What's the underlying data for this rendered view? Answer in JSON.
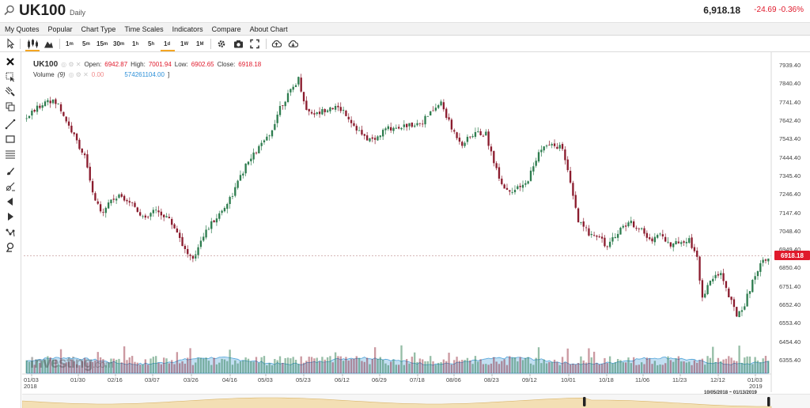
{
  "header": {
    "symbol": "UK100",
    "interval": "Daily",
    "last_price": "6,918.18",
    "change": "-24.69 -0.36%"
  },
  "menu": {
    "items": [
      "My Quotes",
      "Popular",
      "Chart Type",
      "Time Scales",
      "Indicators",
      "Compare",
      "About Chart"
    ]
  },
  "toolbar": {
    "timescales": [
      "1m",
      "5m",
      "15m",
      "30m",
      "1h",
      "5h",
      "1d",
      "1W",
      "1M"
    ],
    "active_timescale": "1d",
    "icons": [
      "cursor-icon",
      "candles-icon",
      "mountain-icon",
      "gear-icon",
      "camera-icon",
      "fullscreen-icon",
      "cloud-upload-icon",
      "cloud-download-icon"
    ]
  },
  "left_tools": [
    "close-icon",
    "cursor-select-icon",
    "magnet-icon",
    "copy-icon",
    "trend-line-icon",
    "rectangle-icon",
    "horizontal-lines-icon",
    "brush-icon",
    "fib-icon",
    "arrow-icon",
    "shape-icon",
    "pattern-icon",
    "magnifier-icon"
  ],
  "legend": {
    "symbol": "UK100",
    "open_label": "Open:",
    "open": "6942.87",
    "high_label": "High:",
    "high": "7001.94",
    "low_label": "Low:",
    "low": "6902.65",
    "close_label": "Close:",
    "close": "6918.18",
    "volume_label": "Volume",
    "volume_period": "(9)",
    "volume_zero": "0.00",
    "volume_value": "574261104.00"
  },
  "brand": {
    "name": "Investing",
    "suffix": ".com"
  },
  "navigator": {
    "range": "10/05/2018 ~ 01/13/2019"
  },
  "price_badge": "6918.18",
  "colors": {
    "up": "#2e7d4f",
    "down": "#8b1c2e",
    "accent": "#f5a623",
    "negative": "#e0192b",
    "volume_area": "#4fa3d9"
  },
  "chart_data": {
    "type": "candlestick",
    "y_ticks": [
      "7939.40",
      "7840.40",
      "7741.40",
      "7642.40",
      "7543.40",
      "7444.40",
      "7345.40",
      "7246.40",
      "7147.40",
      "7048.40",
      "6949.40",
      "6850.40",
      "6751.40",
      "6652.40",
      "6553.40",
      "6454.40",
      "6355.40"
    ],
    "x_ticks": [
      "01/03",
      "01/30",
      "02/16",
      "03/07",
      "03/26",
      "04/16",
      "05/03",
      "05/23",
      "06/12",
      "06/29",
      "07/18",
      "08/06",
      "08/23",
      "09/12",
      "10/01",
      "10/18",
      "11/06",
      "11/23",
      "12/12",
      "01/03"
    ],
    "x_years": [
      "2018",
      "2019"
    ],
    "ylim": [
      6355.4,
      7939.4
    ],
    "current_price": 6918.18,
    "anchors": [
      [
        0,
        7660
      ],
      [
        8,
        7760
      ],
      [
        12,
        7730
      ],
      [
        18,
        7560
      ],
      [
        22,
        7450
      ],
      [
        25,
        7250
      ],
      [
        28,
        7150
      ],
      [
        32,
        7220
      ],
      [
        36,
        7240
      ],
      [
        40,
        7200
      ],
      [
        45,
        7110
      ],
      [
        48,
        7160
      ],
      [
        53,
        7130
      ],
      [
        57,
        7050
      ],
      [
        60,
        6950
      ],
      [
        63,
        6890
      ],
      [
        66,
        7010
      ],
      [
        70,
        7090
      ],
      [
        74,
        7160
      ],
      [
        78,
        7250
      ],
      [
        83,
        7400
      ],
      [
        88,
        7500
      ],
      [
        92,
        7560
      ],
      [
        96,
        7720
      ],
      [
        100,
        7800
      ],
      [
        103,
        7870
      ],
      [
        106,
        7700
      ],
      [
        110,
        7680
      ],
      [
        115,
        7720
      ],
      [
        120,
        7700
      ],
      [
        124,
        7620
      ],
      [
        128,
        7550
      ],
      [
        132,
        7540
      ],
      [
        136,
        7600
      ],
      [
        140,
        7610
      ],
      [
        145,
        7620
      ],
      [
        150,
        7640
      ],
      [
        154,
        7700
      ],
      [
        157,
        7740
      ],
      [
        161,
        7600
      ],
      [
        165,
        7520
      ],
      [
        170,
        7580
      ],
      [
        174,
        7570
      ],
      [
        178,
        7380
      ],
      [
        181,
        7280
      ],
      [
        185,
        7270
      ],
      [
        189,
        7300
      ],
      [
        192,
        7400
      ],
      [
        195,
        7500
      ],
      [
        199,
        7510
      ],
      [
        203,
        7500
      ],
      [
        206,
        7300
      ],
      [
        209,
        7100
      ],
      [
        213,
        7040
      ],
      [
        217,
        7030
      ],
      [
        220,
        6960
      ],
      [
        224,
        7050
      ],
      [
        228,
        7100
      ],
      [
        232,
        7070
      ],
      [
        236,
        7000
      ],
      [
        240,
        7040
      ],
      [
        244,
        6970
      ],
      [
        248,
        7000
      ],
      [
        251,
        7010
      ],
      [
        254,
        6900
      ],
      [
        256,
        6700
      ],
      [
        260,
        6800
      ],
      [
        263,
        6830
      ],
      [
        266,
        6700
      ],
      [
        269,
        6600
      ],
      [
        272,
        6660
      ],
      [
        275,
        6780
      ],
      [
        278,
        6880
      ],
      [
        281,
        6918
      ]
    ],
    "volume_scale": "relative"
  }
}
